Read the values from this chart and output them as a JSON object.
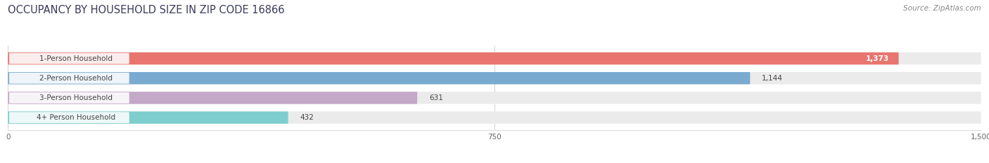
{
  "title": "OCCUPANCY BY HOUSEHOLD SIZE IN ZIP CODE 16866",
  "source": "Source: ZipAtlas.com",
  "categories": [
    "1-Person Household",
    "2-Person Household",
    "3-Person Household",
    "4+ Person Household"
  ],
  "values": [
    1373,
    1144,
    631,
    432
  ],
  "bar_colors": [
    "#E87570",
    "#7AAAD0",
    "#C4A8C8",
    "#7ECECE"
  ],
  "bar_bg_color": "#EBEBEB",
  "xlim": [
    0,
    1500
  ],
  "xticks": [
    0,
    750,
    1500
  ],
  "title_fontsize": 10.5,
  "source_fontsize": 7.5,
  "label_fontsize": 7.5,
  "value_fontsize": 7.5,
  "bar_height": 0.62,
  "figsize": [
    14.06,
    2.33
  ],
  "dpi": 100
}
